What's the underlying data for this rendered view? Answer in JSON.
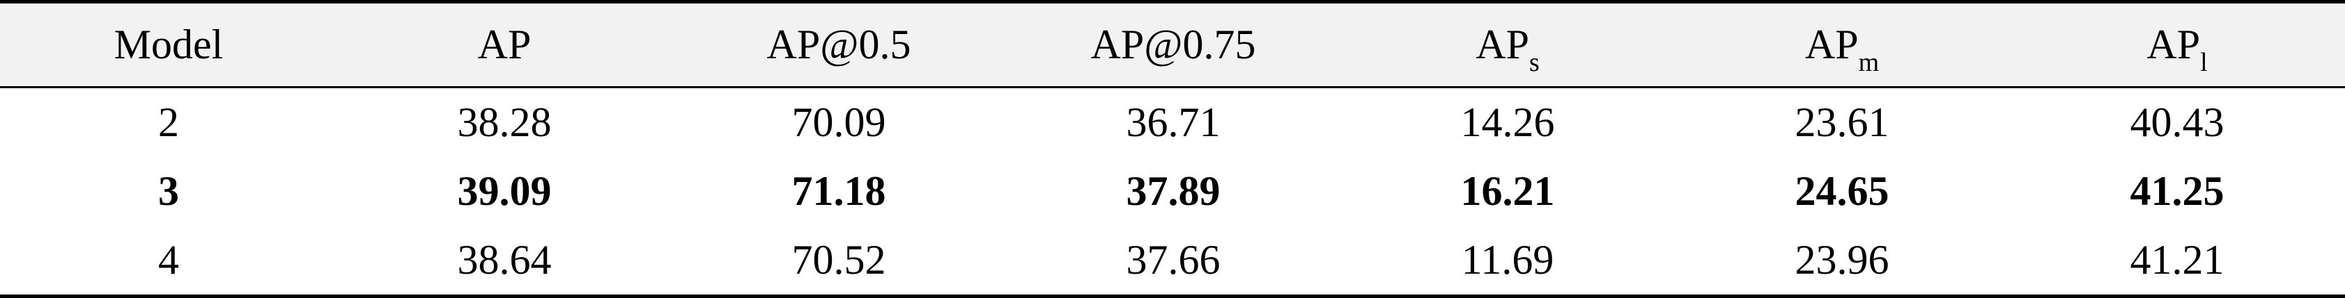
{
  "table": {
    "headers": [
      {
        "main": "Model",
        "sub": ""
      },
      {
        "main": "AP",
        "sub": ""
      },
      {
        "main": "AP@0.5",
        "sub": ""
      },
      {
        "main": "AP@0.75",
        "sub": ""
      },
      {
        "main": "AP",
        "sub": "s"
      },
      {
        "main": "AP",
        "sub": "m"
      },
      {
        "main": "AP",
        "sub": "l"
      }
    ],
    "rows": [
      {
        "bold": false,
        "cells": [
          "2",
          "38.28",
          "70.09",
          "36.71",
          "14.26",
          "23.61",
          "40.43"
        ]
      },
      {
        "bold": true,
        "cells": [
          "3",
          "39.09",
          "71.18",
          "37.89",
          "16.21",
          "24.65",
          "41.25"
        ]
      },
      {
        "bold": false,
        "cells": [
          "4",
          "38.64",
          "70.52",
          "37.66",
          "11.69",
          "23.96",
          "41.21"
        ]
      }
    ]
  }
}
